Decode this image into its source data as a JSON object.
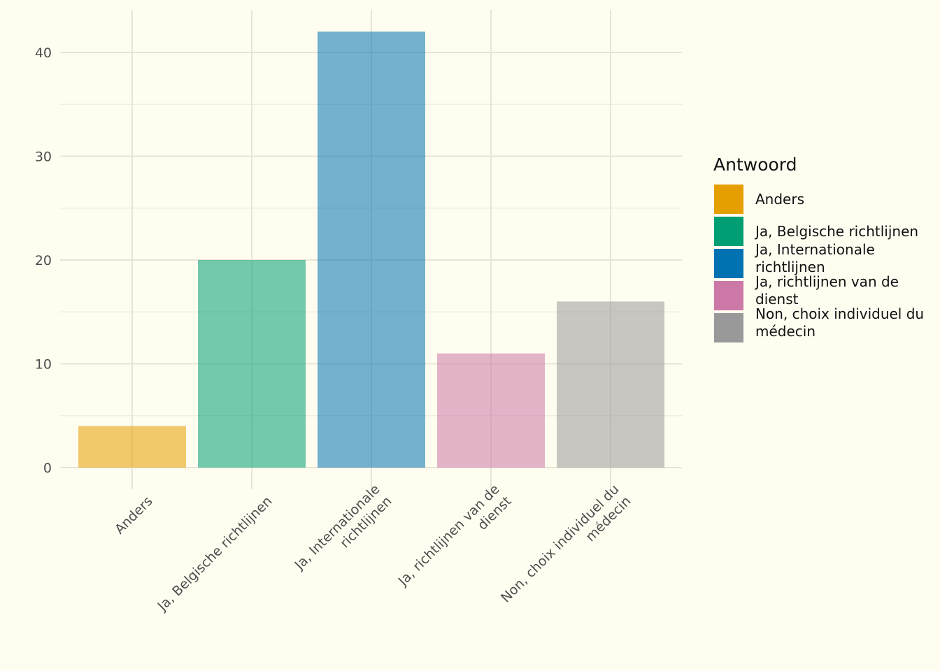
{
  "chart_data": {
    "type": "bar",
    "categories": [
      "Anders",
      "Ja, Belgische richtlijnen",
      "Ja, Internationale richtlijnen",
      "Ja, richtlijnen van de dienst",
      "Non, choix individuel du médecin"
    ],
    "category_tick_lines": [
      [
        "Anders"
      ],
      [
        "Ja, Belgische richtlijnen"
      ],
      [
        "Ja, Internationale",
        "richtlijnen"
      ],
      [
        "Ja, richtlijnen van de",
        "dienst"
      ],
      [
        "Non, choix individuel du",
        "médecin"
      ]
    ],
    "values": [
      4,
      20,
      42,
      11,
      16
    ],
    "colors": [
      "#E69F00",
      "#009E73",
      "#0072B2",
      "#CC79A7",
      "#999999"
    ],
    "bar_opacity": 0.55,
    "ylim": [
      0,
      43
    ],
    "yticks": [
      0,
      10,
      20,
      30,
      40
    ],
    "y_minor_ticks": [
      5,
      15,
      25,
      35
    ],
    "grid": true,
    "title": "",
    "xlabel": "",
    "ylabel": "",
    "legend": {
      "title": "Antwoord",
      "position": "right",
      "entries": [
        {
          "label_lines": [
            "Anders"
          ],
          "color": "#E69F00"
        },
        {
          "label_lines": [
            "Ja, Belgische richtlijnen"
          ],
          "color": "#009E73"
        },
        {
          "label_lines": [
            "Ja, Internationale",
            "richtlijnen"
          ],
          "color": "#0072B2"
        },
        {
          "label_lines": [
            "Ja, richtlijnen van de",
            "dienst"
          ],
          "color": "#CC79A7"
        },
        {
          "label_lines": [
            "Non, choix individuel du",
            "médecin"
          ],
          "color": "#999999"
        }
      ]
    }
  }
}
